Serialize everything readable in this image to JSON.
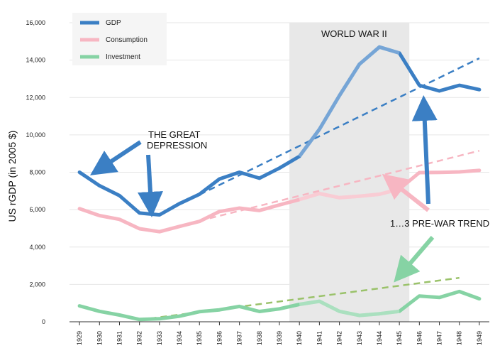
{
  "chart_data": {
    "type": "line",
    "ylabel": "US rGDP (in 2005 $)",
    "ylim": [
      0,
      16000
    ],
    "yticks": [
      "0",
      "2,000",
      "4,000",
      "6,000",
      "8,000",
      "10,000",
      "12,000",
      "14,000",
      "16,000"
    ],
    "x": [
      "1929",
      "1930",
      "1931",
      "1932",
      "1933",
      "1934",
      "1935",
      "1936",
      "1937",
      "1938",
      "1939",
      "1940",
      "1941",
      "1942",
      "1943",
      "1944",
      "1945",
      "1946",
      "1947",
      "1948",
      "1949"
    ],
    "series": [
      {
        "name": "GDP",
        "color": "#3b7fc4",
        "values": [
          8000,
          7280,
          6750,
          5820,
          5720,
          6320,
          6820,
          7640,
          8000,
          7680,
          8220,
          8850,
          10300,
          12100,
          13780,
          14700,
          14380,
          12650,
          12350,
          12650,
          12420
        ]
      },
      {
        "name": "Consumption",
        "color": "#f7b6c2",
        "values": [
          6050,
          5680,
          5480,
          4980,
          4820,
          5100,
          5370,
          5900,
          6080,
          5950,
          6250,
          6540,
          6860,
          6640,
          6720,
          6820,
          7100,
          7980,
          7990,
          8020,
          8100
        ]
      },
      {
        "name": "Investment",
        "color": "#86d3a4",
        "values": [
          850,
          560,
          360,
          120,
          160,
          300,
          540,
          640,
          820,
          550,
          690,
          930,
          1100,
          560,
          340,
          430,
          560,
          1380,
          1300,
          1620,
          1230
        ]
      }
    ],
    "trends": [
      {
        "series": "GDP",
        "color": "#3b7fc4",
        "from": [
          "1935",
          6800
        ],
        "to": [
          "1949",
          14100
        ]
      },
      {
        "series": "Consumption",
        "color": "#f7b6c2",
        "from": [
          "1935",
          5400
        ],
        "to": [
          "1949",
          9150
        ]
      },
      {
        "series": "Investment",
        "color": "#9ac26a",
        "from": [
          "1932",
          100
        ],
        "to": [
          "1948",
          2350
        ]
      }
    ],
    "shaded_region": {
      "from": "1940",
      "to": "1945",
      "label": "WORLD WAR II"
    },
    "annotations": {
      "depression_line1": "THE GREAT",
      "depression_line2": "DEPRESSION",
      "trend_label": "1…3 PRE-WAR TREND"
    },
    "legend_position": "top-left"
  }
}
